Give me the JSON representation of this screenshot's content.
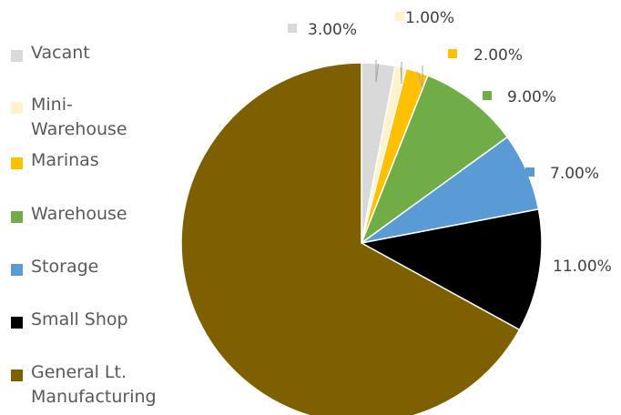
{
  "chart_data": {
    "type": "pie",
    "title": "",
    "slices": [
      {
        "label": "Vacant",
        "value": 3.0,
        "data_label": "3.00%",
        "color": "#d9d9d9"
      },
      {
        "label": "Mini-\nWarehouse",
        "value": 1.0,
        "data_label": "1.00%",
        "color": "#fff2cc"
      },
      {
        "label": "Marinas",
        "value": 2.0,
        "data_label": "2.00%",
        "color": "#ffc000"
      },
      {
        "label": "Warehouse",
        "value": 9.0,
        "data_label": "9.00%",
        "color": "#70ad47"
      },
      {
        "label": "Storage",
        "value": 7.0,
        "data_label": "7.00%",
        "color": "#5b9bd5"
      },
      {
        "label": "Small Shop",
        "value": 11.0,
        "data_label": "11.00%",
        "color": "#000000"
      },
      {
        "label": "General Lt.\nManufacturing",
        "value": 67.0,
        "data_label": "",
        "color": "#7f6000"
      }
    ],
    "legend_position": "left",
    "start_angle_deg": 0
  }
}
